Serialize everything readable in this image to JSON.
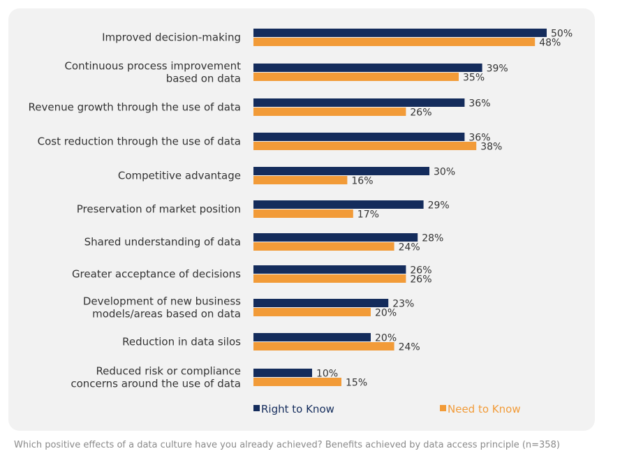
{
  "chart_data": {
    "type": "bar",
    "orientation": "horizontal",
    "categories": [
      [
        "Improved decision-making"
      ],
      [
        "Continuous process improvement",
        "based on data"
      ],
      [
        "Revenue growth through the use of data"
      ],
      [
        "Cost reduction through the use of data"
      ],
      [
        "Competitive advantage"
      ],
      [
        "Preservation of market position"
      ],
      [
        "Shared understanding of data"
      ],
      [
        "Greater acceptance of decisions"
      ],
      [
        "Development of new business",
        "models/areas based on data"
      ],
      [
        "Reduction in data silos"
      ],
      [
        "Reduced risk or compliance",
        "concerns around the use of data"
      ]
    ],
    "series": [
      {
        "name": "Right to Know",
        "color": "#142c5c",
        "values": [
          50,
          39,
          36,
          36,
          30,
          29,
          28,
          26,
          23,
          20,
          10
        ]
      },
      {
        "name": "Need to Know",
        "color": "#f29b38",
        "values": [
          48,
          35,
          26,
          38,
          16,
          17,
          24,
          26,
          20,
          24,
          15
        ]
      }
    ],
    "value_suffix": "%",
    "xlim": [
      0,
      50
    ],
    "legend_position": "bottom",
    "grid": false
  },
  "caption": "Which positive effects of a data culture have you already achieved? Benefits achieved by data access principle (n=358)"
}
